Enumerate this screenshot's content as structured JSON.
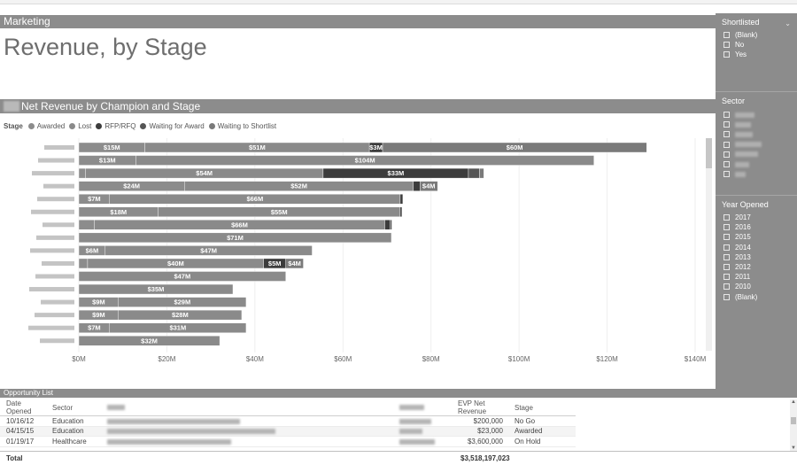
{
  "header": {
    "section_title": "Marketing",
    "page_title": "Revenue, by Stage"
  },
  "chart_section": {
    "title": "Net Revenue by Champion and Stage"
  },
  "legend": {
    "title": "Stage",
    "items": [
      {
        "label": "Awarded",
        "color": "#8c8c8c"
      },
      {
        "label": "Lost",
        "color": "#8a8a8a"
      },
      {
        "label": "RFP/RFQ",
        "color": "#3c3c3c"
      },
      {
        "label": "Waiting for Award",
        "color": "#555555"
      },
      {
        "label": "Waiting to Shortlist",
        "color": "#7a7a7a"
      }
    ]
  },
  "chart_data": {
    "type": "bar",
    "orientation": "horizontal",
    "stacked": true,
    "title": "Net Revenue by Champion and Stage",
    "xlim": [
      0,
      140
    ],
    "x_ticks": [
      "$0M",
      "$20M",
      "$40M",
      "$60M",
      "$80M",
      "$100M",
      "$120M",
      "$140M"
    ],
    "category_labels_visible": false,
    "categories": [
      "Champion 1",
      "Champion 2",
      "Champion 3",
      "Champion 4",
      "Champion 5",
      "Champion 6",
      "Champion 7",
      "Champion 8",
      "Champion 9",
      "Champion 10",
      "Champion 11",
      "Champion 12",
      "Champion 13",
      "Champion 14",
      "Champion 15",
      "Champion 16"
    ],
    "series": [
      {
        "name": "Awarded",
        "color": "#8c8c8c",
        "values": [
          15,
          13,
          1.5,
          24,
          7,
          18,
          3.5,
          0,
          6,
          2,
          0,
          0,
          9,
          9,
          7,
          0
        ],
        "labels": [
          "$15M",
          "$13M",
          "",
          "$24M",
          "$7M",
          "$18M",
          "",
          "",
          "$6M",
          "",
          "",
          "",
          "$9M",
          "$9M",
          "$7M",
          ""
        ]
      },
      {
        "name": "Lost",
        "color": "#8a8a8a",
        "values": [
          51,
          104,
          54,
          52,
          66,
          55,
          66,
          71,
          47,
          40,
          47,
          35,
          29,
          28,
          31,
          32
        ],
        "labels": [
          "$51M",
          "$104M",
          "$54M",
          "$52M",
          "$66M",
          "$55M",
          "$66M",
          "$71M",
          "$47M",
          "$40M",
          "$47M",
          "$35M",
          "$29M",
          "$28M",
          "$31M",
          "$32M"
        ]
      },
      {
        "name": "RFP/RFQ",
        "color": "#3c3c3c",
        "values": [
          3,
          0,
          33,
          1.5,
          0.6,
          0.4,
          1.2,
          0,
          0,
          5,
          0,
          0,
          0,
          0,
          0,
          0
        ],
        "labels": [
          "$3M",
          "",
          "$33M",
          "",
          "",
          "",
          "",
          "",
          "",
          "$5M",
          "",
          "",
          "",
          "",
          "",
          ""
        ]
      },
      {
        "name": "Waiting for Award",
        "color": "#555555",
        "values": [
          0,
          0,
          2.5,
          0,
          0,
          0,
          0.4,
          0,
          0,
          0,
          0,
          0,
          0,
          0,
          0,
          0
        ],
        "labels": [
          "",
          "",
          "",
          "",
          "",
          "",
          "",
          "",
          "",
          "",
          "",
          "",
          "",
          "",
          "",
          ""
        ]
      },
      {
        "name": "Waiting to Shortlist",
        "color": "#7a7a7a",
        "values": [
          60,
          0,
          1,
          4,
          0,
          0,
          0,
          0,
          0,
          4,
          0,
          0,
          0,
          0,
          0,
          0
        ],
        "labels": [
          "$60M",
          "",
          "",
          "$4M",
          "",
          "",
          "",
          "",
          "",
          "$4M",
          "",
          "",
          "",
          "",
          "",
          ""
        ]
      }
    ]
  },
  "slicers": {
    "shortlisted": {
      "title": "Shortlisted",
      "options": [
        "(Blank)",
        "No",
        "Yes"
      ]
    },
    "sector": {
      "title": "Sector",
      "options": [
        "",
        "",
        "",
        "",
        "",
        "",
        ""
      ]
    },
    "year_opened": {
      "title": "Year Opened",
      "options": [
        "2017",
        "2016",
        "2015",
        "2014",
        "2013",
        "2012",
        "2011",
        "2010",
        "(Blank)"
      ]
    }
  },
  "opportunity_list": {
    "title": "Opportunity List",
    "columns": [
      "Date Opened",
      "Sector",
      "Name",
      "Champion",
      "EVP Net Revenue",
      "Stage"
    ],
    "rows": [
      {
        "date": "10/16/12",
        "sector": "Education",
        "name": "",
        "champion": "",
        "revenue": "$200,000",
        "stage": "No Go"
      },
      {
        "date": "04/15/15",
        "sector": "Education",
        "name": "",
        "champion": "",
        "revenue": "$23,000",
        "stage": "Awarded"
      },
      {
        "date": "01/19/17",
        "sector": "Healthcare",
        "name": "",
        "champion": "",
        "revenue": "$3,600,000",
        "stage": "On Hold"
      }
    ],
    "total_label": "Total",
    "total_value": "$3,518,197,023"
  }
}
